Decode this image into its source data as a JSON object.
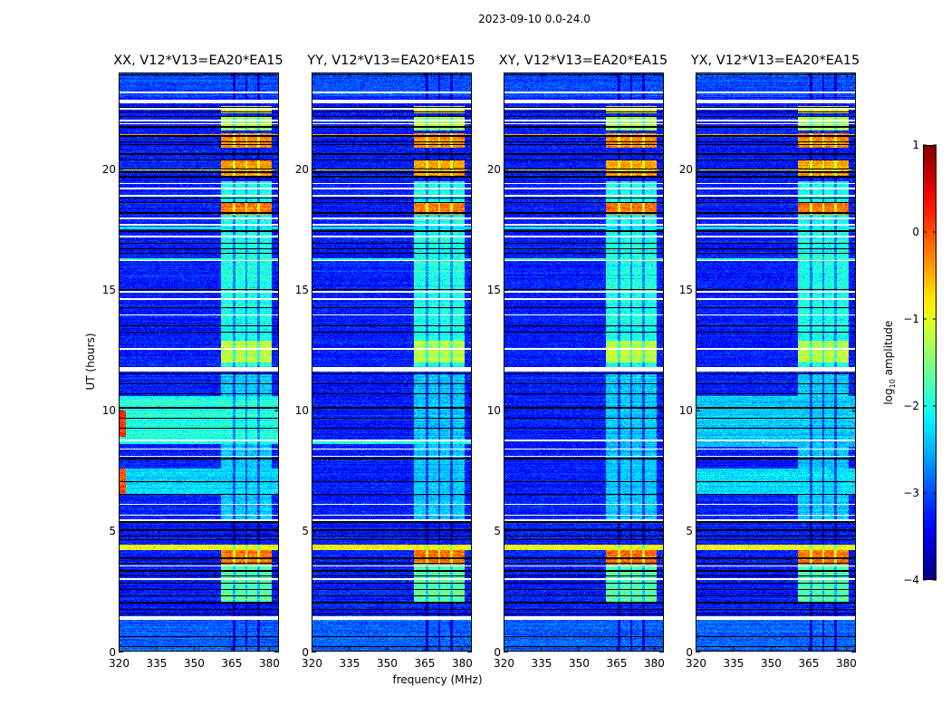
{
  "chart_data": {
    "type": "heatmap",
    "title": "2023-09-10 0.0-24.0",
    "xlabel": "frequency (MHz)",
    "ylabel": "UT (hours)",
    "xlim": [
      320,
      384
    ],
    "ylim": [
      0,
      24
    ],
    "xticks": [
      "320",
      "335",
      "350",
      "365",
      "380"
    ],
    "xtick_values": [
      320,
      335,
      350,
      365,
      380
    ],
    "yticks": [
      "0",
      "5",
      "10",
      "15",
      "20"
    ],
    "ytick_values": [
      0,
      5,
      10,
      15,
      20
    ],
    "panels": [
      {
        "title": "XX, V12*V13=EA20*EA15"
      },
      {
        "title": "YY, V12*V13=EA20*EA15"
      },
      {
        "title": "XY, V12*V13=EA20*EA15"
      },
      {
        "title": "YX, V12*V13=EA20*EA15"
      }
    ],
    "colorbar": {
      "label_prefix": "log",
      "label_sub": "10",
      "label_suffix": " amplitude",
      "colormap": "jet",
      "range": [
        -4,
        1
      ],
      "ticks": [
        "1",
        "0",
        "−1",
        "−2",
        "−3",
        "−4"
      ],
      "tick_values": [
        1,
        0,
        -1,
        -2,
        -3,
        -4
      ]
    },
    "baseline_level": -3.25,
    "no_data_ut_gaps": [
      [
        23.15,
        23.22
      ],
      [
        22.72,
        22.87
      ],
      [
        22.47,
        22.53
      ],
      [
        21.97,
        22.03
      ],
      [
        21.85,
        21.9
      ],
      [
        19.37,
        19.43
      ],
      [
        19.17,
        19.23
      ],
      [
        18.87,
        18.93
      ],
      [
        17.92,
        17.98
      ],
      [
        17.67,
        17.73
      ],
      [
        17.17,
        17.23
      ],
      [
        16.17,
        16.23
      ],
      [
        14.87,
        14.93
      ],
      [
        14.57,
        14.63
      ],
      [
        13.92,
        13.98
      ],
      [
        12.52,
        12.58
      ],
      [
        11.6,
        11.8
      ],
      [
        8.72,
        8.78
      ],
      [
        8.37,
        8.43
      ],
      [
        8.07,
        8.13
      ],
      [
        6.07,
        6.13
      ],
      [
        5.62,
        5.68
      ],
      [
        5.42,
        5.48
      ],
      [
        3.52,
        3.58
      ],
      [
        2.97,
        3.03
      ],
      [
        1.3,
        1.45
      ]
    ],
    "flagged_ut_rows": [
      23.9,
      22.56,
      22.37,
      22.18,
      21.75,
      21.37,
      21.12,
      21.0,
      20.62,
      20.37,
      20.0,
      19.87,
      19.68,
      18.8,
      18.62,
      18.18,
      17.43,
      17.18,
      16.93,
      16.68,
      16.5,
      15.0,
      14.24,
      13.5,
      13.23,
      11.5,
      11.1,
      10.7,
      10.1,
      9.66,
      9.25,
      8.0,
      7.03,
      6.53,
      5.37,
      5.03,
      4.78,
      4.65,
      3.87,
      3.65,
      3.34,
      3.15,
      2.84,
      2.56,
      2.32,
      2.03,
      1.74,
      1.56,
      0.61,
      0.21
    ],
    "rfi_subband_gaps_mhz": [
      366,
      371,
      376
    ],
    "bands": [
      {
        "ut": [
          0,
          1.3
        ],
        "freq": [
          320,
          384
        ],
        "level": -2.9
      },
      {
        "ut": [
          23.0,
          24
        ],
        "freq": [
          320,
          384
        ],
        "level": -3.0
      },
      {
        "ut": [
          2.0,
          3.6
        ],
        "freq": [
          361,
          381
        ],
        "level": -1.7
      },
      {
        "ut": [
          3.6,
          4.2
        ],
        "freq": [
          361,
          381
        ],
        "level": -0.2
      },
      {
        "ut": [
          4.2,
          4.45
        ],
        "freq": [
          320,
          384
        ],
        "level": -0.9
      },
      {
        "ut": [
          5.5,
          11.5
        ],
        "freq": [
          361,
          381
        ],
        "level": -2.4
      },
      {
        "ut": [
          11.8,
          19.5
        ],
        "freq": [
          361,
          381
        ],
        "level": -2.0
      },
      {
        "ut": [
          12.0,
          12.9
        ],
        "freq": [
          361,
          381
        ],
        "level": -1.2
      },
      {
        "ut": [
          16.2,
          16.3
        ],
        "freq": [
          320,
          384
        ],
        "level": -1.8
      },
      {
        "ut": [
          17.5,
          17.6
        ],
        "freq": [
          320,
          384
        ],
        "level": -2.2
      },
      {
        "ut": [
          18.1,
          18.6
        ],
        "freq": [
          361,
          381
        ],
        "level": -0.2
      },
      {
        "ut": [
          19.7,
          20.4
        ],
        "freq": [
          361,
          381
        ],
        "level": -0.4
      },
      {
        "ut": [
          19.95,
          20.0
        ],
        "freq": [
          320,
          384
        ],
        "level": -0.8
      },
      {
        "ut": [
          20.9,
          21.5
        ],
        "freq": [
          361,
          381
        ],
        "level": -0.3
      },
      {
        "ut": [
          21.4,
          21.45
        ],
        "freq": [
          320,
          384
        ],
        "level": -0.5
      },
      {
        "ut": [
          21.6,
          22.2
        ],
        "freq": [
          361,
          381
        ],
        "level": -1.3
      },
      {
        "ut": [
          22.3,
          22.6
        ],
        "freq": [
          361,
          381
        ],
        "level": -0.9
      },
      {
        "ut": [
          8.6,
          10.6
        ],
        "freq": [
          320,
          384
        ],
        "level": -2.0,
        "panels": [
          0
        ]
      },
      {
        "ut": [
          6.5,
          7.6
        ],
        "freq": [
          320,
          384
        ],
        "level": -2.3,
        "panels": [
          0,
          3
        ]
      },
      {
        "ut": [
          6.5,
          7.6
        ],
        "freq": [
          320,
          323
        ],
        "level": 0.0,
        "panels": [
          0
        ]
      },
      {
        "ut": [
          8.9,
          10.0
        ],
        "freq": [
          320,
          323
        ],
        "level": 0.1,
        "panels": [
          0
        ]
      },
      {
        "ut": [
          8.5,
          10.6
        ],
        "freq": [
          320,
          384
        ],
        "level": -2.4,
        "panels": [
          3
        ]
      },
      {
        "ut": [
          8.6,
          8.8
        ],
        "freq": [
          320,
          384
        ],
        "level": -2.0,
        "panels": [
          1
        ]
      }
    ]
  }
}
